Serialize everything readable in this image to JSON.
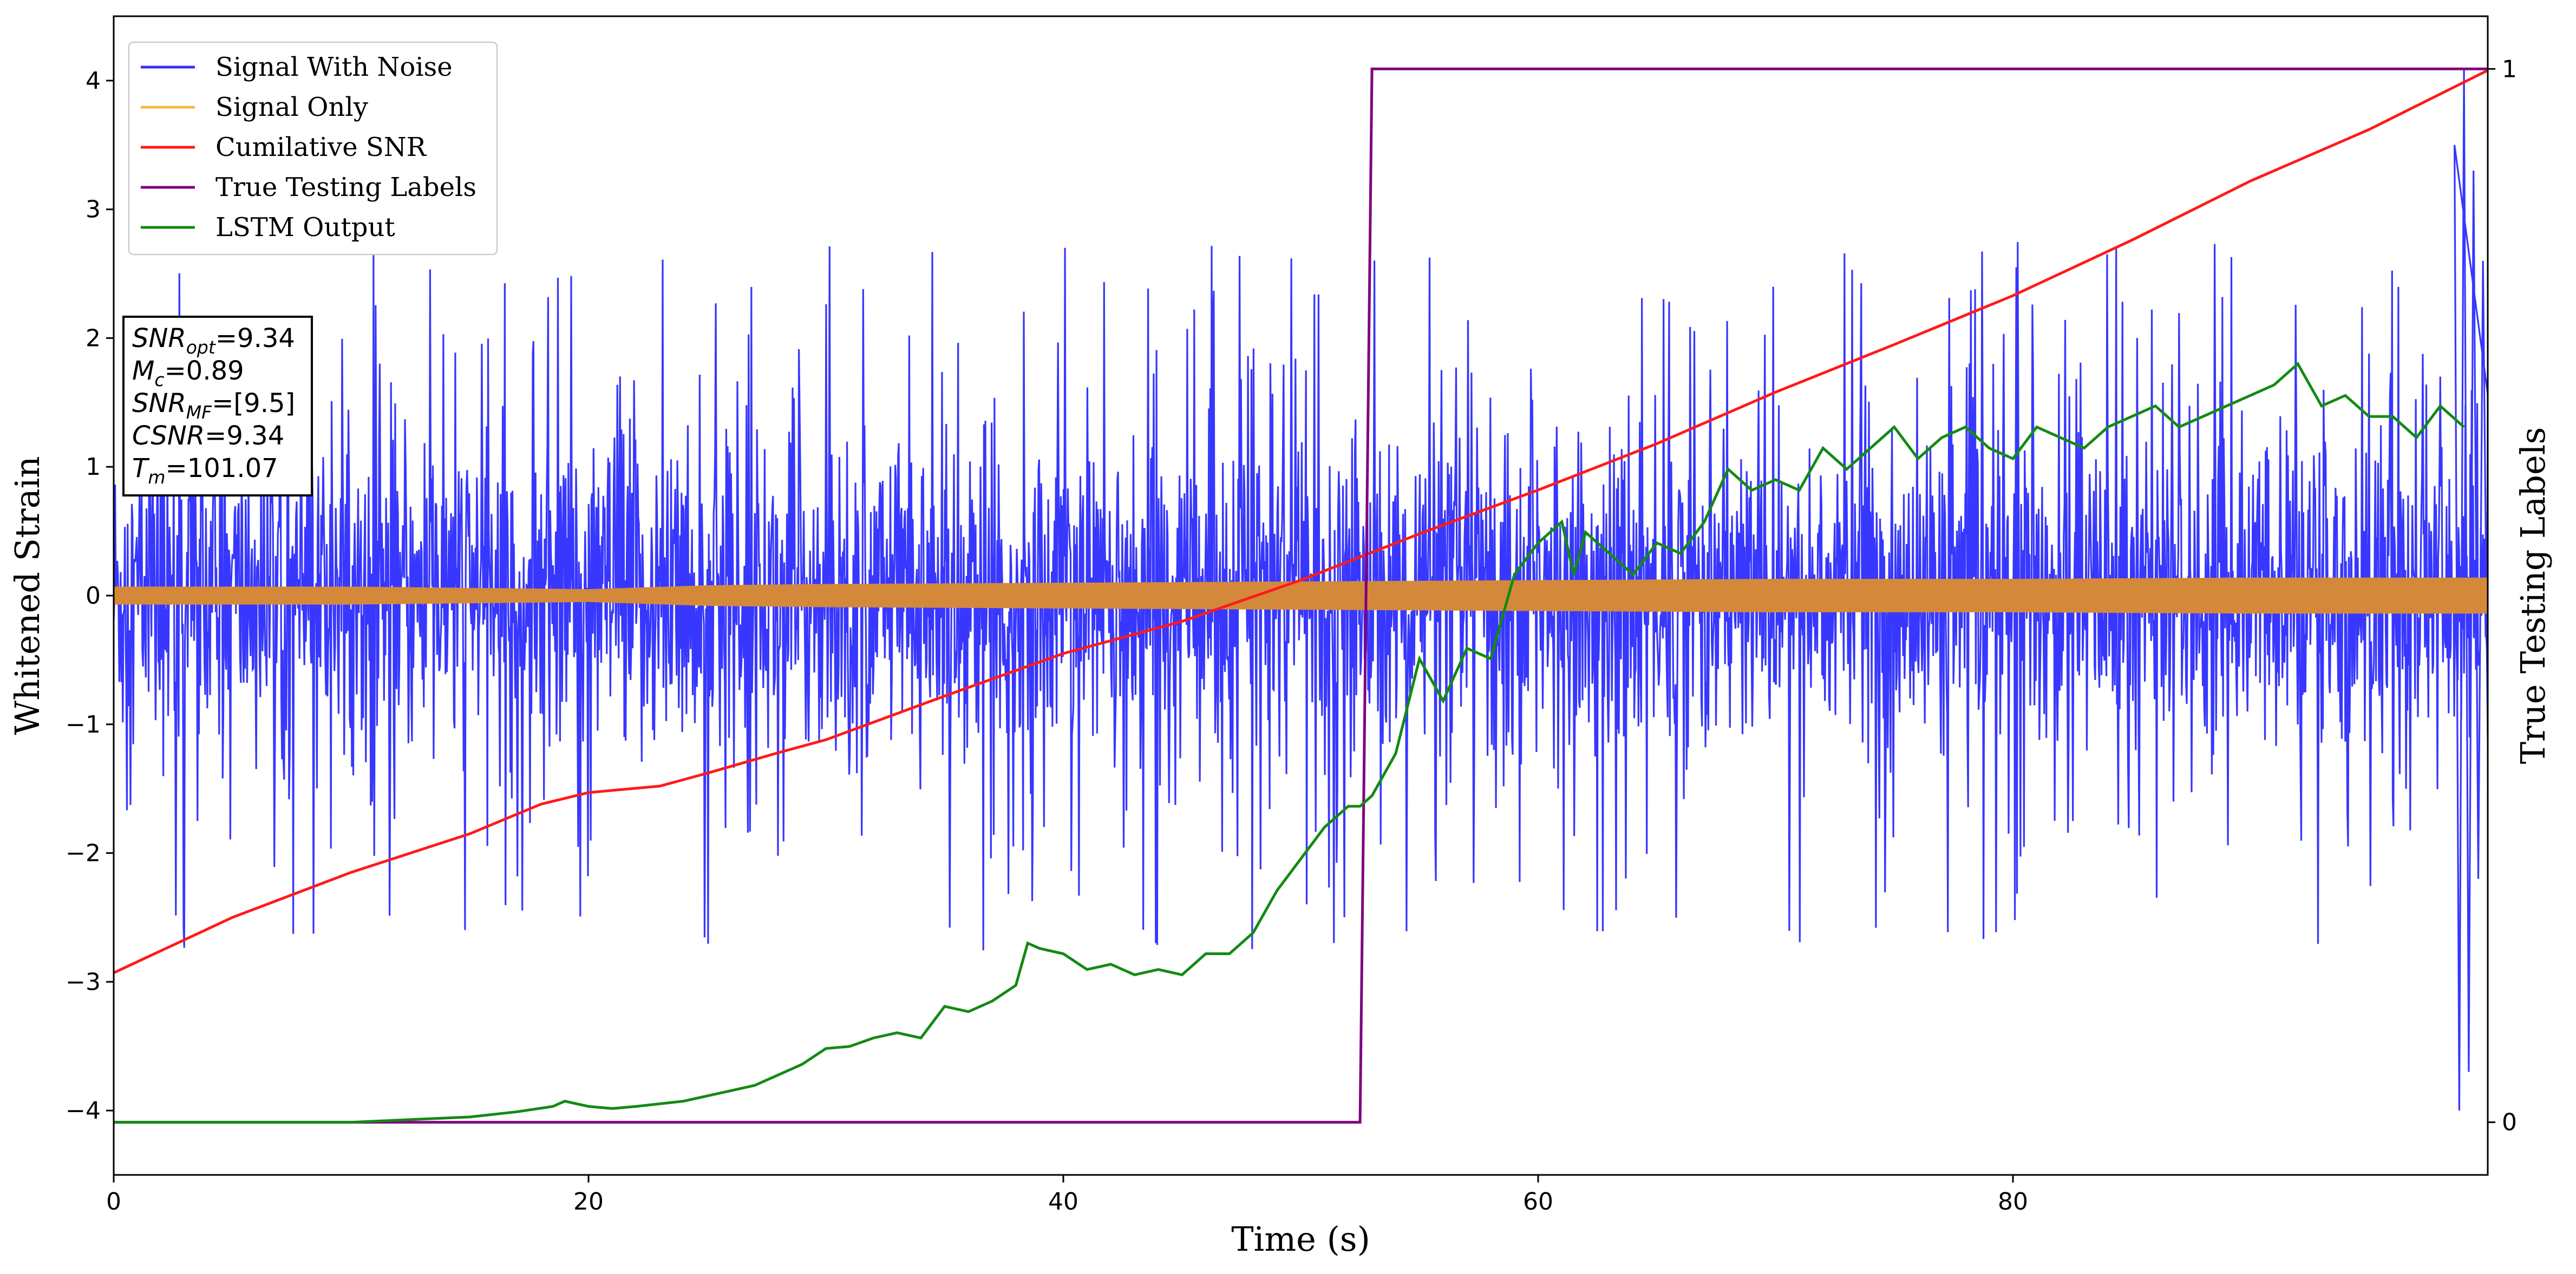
{
  "chart_data": {
    "type": "line",
    "xlabel": "Time (s)",
    "ylabel": "Whitened Strain",
    "ylabel_right": "True Testing Labels",
    "xlim": [
      0,
      100
    ],
    "ylim": [
      -4.5,
      4.5
    ],
    "ylim_right": [
      -0.05,
      1.05
    ],
    "x_ticks": [
      0,
      20,
      40,
      60,
      80
    ],
    "x_tick_labels": [
      "0",
      "20",
      "40",
      "60",
      "80"
    ],
    "y_ticks": [
      -4,
      -3,
      -2,
      -1,
      0,
      1,
      2,
      3,
      4
    ],
    "y_tick_labels": [
      "−4",
      "−3",
      "−2",
      "−1",
      "0",
      "1",
      "2",
      "3",
      "4"
    ],
    "y_right_ticks": [
      0,
      1
    ],
    "y_right_tick_labels": [
      "0",
      "1"
    ],
    "grid": false,
    "legend_position": "top-left",
    "colors": {
      "signal_with_noise": "#3333ff",
      "signal_only": "#f5b942",
      "signal_only_band": "#d4893a",
      "cumulative_snr": "#ff1a1a",
      "true_labels": "#800080",
      "lstm_output": "#138a13"
    },
    "series": [
      {
        "name": "Signal With Noise",
        "axis": "left",
        "style": "noise",
        "band_amplitude": 1.3,
        "spike_range": [
          1.5,
          3.3
        ],
        "note_values": []
      },
      {
        "name": "Signal Only",
        "axis": "left",
        "style": "band",
        "x": [
          0,
          10,
          20,
          25,
          30,
          40,
          50,
          60,
          70,
          80,
          90,
          100
        ],
        "amplitude": [
          0.07,
          0.07,
          0.05,
          0.08,
          0.09,
          0.1,
          0.11,
          0.12,
          0.13,
          0.13,
          0.14,
          0.14
        ]
      },
      {
        "name": "Cumilative SNR",
        "axis": "left",
        "x": [
          0,
          5,
          10,
          15,
          18,
          20,
          23,
          25,
          28,
          30,
          35,
          40,
          45,
          50,
          55,
          60,
          65,
          70,
          75,
          80,
          85,
          90,
          95,
          100
        ],
        "y": [
          -2.93,
          -2.5,
          -2.15,
          -1.85,
          -1.62,
          -1.53,
          -1.48,
          -1.38,
          -1.22,
          -1.12,
          -0.78,
          -0.45,
          -0.2,
          0.12,
          0.48,
          0.82,
          1.18,
          1.58,
          1.95,
          2.33,
          2.76,
          3.22,
          3.62,
          4.08
        ]
      },
      {
        "name": "True Testing Labels",
        "axis": "right",
        "x": [
          0,
          52.5,
          53.0,
          100
        ],
        "y": [
          0,
          0,
          1,
          1
        ]
      },
      {
        "name": "LSTM Output",
        "axis": "right",
        "x": [
          0,
          10,
          15,
          17,
          18.5,
          19,
          20,
          21,
          22,
          24,
          26,
          27,
          28,
          29,
          30,
          31,
          32,
          33,
          34,
          35,
          36,
          37,
          38,
          38.5,
          39,
          40,
          41,
          42,
          43,
          44,
          45,
          46,
          47,
          48,
          49,
          50,
          51,
          52,
          52.5,
          53,
          54,
          55,
          56,
          57,
          58,
          59,
          60,
          61,
          61.5,
          62,
          63,
          64,
          65,
          66,
          67,
          68,
          69,
          70,
          71,
          72,
          73,
          74,
          75,
          76,
          77,
          78,
          79,
          80,
          81,
          82,
          83,
          84,
          85,
          86,
          87,
          88,
          89,
          90,
          91,
          92,
          93,
          94,
          95,
          96,
          97,
          98,
          99
        ],
        "y": [
          0,
          0,
          0.005,
          0.01,
          0.015,
          0.02,
          0.015,
          0.013,
          0.015,
          0.02,
          0.03,
          0.035,
          0.045,
          0.055,
          0.07,
          0.072,
          0.08,
          0.085,
          0.08,
          0.11,
          0.105,
          0.115,
          0.13,
          0.17,
          0.165,
          0.16,
          0.145,
          0.15,
          0.14,
          0.145,
          0.14,
          0.16,
          0.16,
          0.18,
          0.22,
          0.25,
          0.28,
          0.3,
          0.3,
          0.31,
          0.35,
          0.44,
          0.4,
          0.45,
          0.44,
          0.52,
          0.55,
          0.57,
          0.52,
          0.56,
          0.54,
          0.52,
          0.55,
          0.54,
          0.57,
          0.62,
          0.6,
          0.61,
          0.6,
          0.64,
          0.62,
          0.64,
          0.66,
          0.63,
          0.65,
          0.66,
          0.64,
          0.63,
          0.66,
          0.65,
          0.64,
          0.66,
          0.67,
          0.68,
          0.66,
          0.67,
          0.68,
          0.69,
          0.7,
          0.72,
          0.68,
          0.69,
          0.67,
          0.67,
          0.65,
          0.68,
          0.66
        ]
      }
    ],
    "annotation": {
      "lines": [
        {
          "base": "SNR",
          "sub": "opt",
          "value": "=9.34"
        },
        {
          "base": "M",
          "sub": "c",
          "value": "=0.89"
        },
        {
          "base": "SNR",
          "sub": "MF",
          "value": "=[9.5]"
        },
        {
          "base": "CSNR",
          "sub": "",
          "value": "=9.34"
        },
        {
          "base": "T",
          "sub": "m",
          "value": "=101.07"
        }
      ]
    }
  }
}
